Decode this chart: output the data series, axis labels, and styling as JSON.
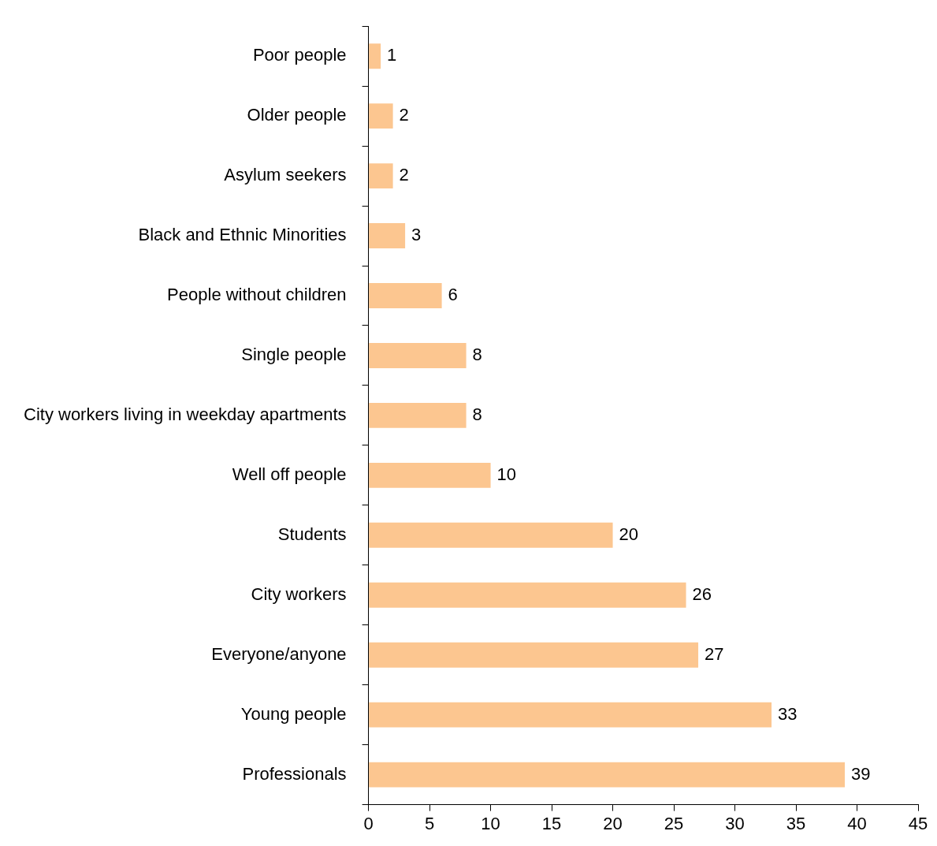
{
  "chart_data": {
    "type": "bar",
    "orientation": "horizontal",
    "categories": [
      "Poor people",
      "Older people",
      "Asylum seekers",
      "Black and Ethnic Minorities",
      "People without children",
      "Single people",
      "City workers living in weekday apartments",
      "Well off people",
      "Students",
      "City workers",
      "Everyone/anyone",
      "Young people",
      "Professionals"
    ],
    "values": [
      1,
      2,
      2,
      3,
      6,
      8,
      8,
      10,
      20,
      26,
      27,
      33,
      39
    ],
    "color": "#fcc690",
    "xlim": [
      0,
      45
    ],
    "xticks": [
      0,
      5,
      10,
      15,
      20,
      25,
      30,
      35,
      40,
      45
    ],
    "grid": false,
    "legend": false,
    "data_labels": true
  }
}
